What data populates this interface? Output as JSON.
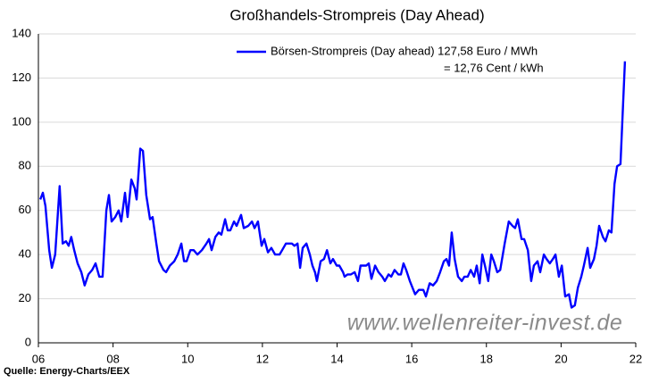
{
  "chart_data": {
    "type": "line",
    "title": "Großhandels-Strompreis (Day Ahead)",
    "annotations": [
      "= 12,76 Cent / kWh",
      "www.wellenreiter-invest.de",
      "Quelle: Energy-Charts/EEX"
    ],
    "x": [
      6.05,
      6.12,
      6.19,
      6.29,
      6.36,
      6.45,
      6.57,
      6.65,
      6.74,
      6.81,
      6.88,
      6.96,
      7.05,
      7.15,
      7.24,
      7.34,
      7.44,
      7.53,
      7.63,
      7.72,
      7.82,
      7.89,
      7.96,
      8.06,
      8.15,
      8.22,
      8.32,
      8.39,
      8.49,
      8.58,
      8.63,
      8.73,
      8.8,
      8.89,
      8.99,
      9.06,
      9.16,
      9.23,
      9.35,
      9.42,
      9.52,
      9.64,
      9.73,
      9.83,
      9.9,
      9.97,
      10.07,
      10.16,
      10.26,
      10.38,
      10.5,
      10.57,
      10.64,
      10.74,
      10.83,
      10.9,
      11.0,
      11.07,
      11.14,
      11.24,
      11.31,
      11.43,
      11.5,
      11.62,
      11.72,
      11.79,
      11.88,
      11.98,
      12.05,
      12.15,
      12.24,
      12.34,
      12.46,
      12.53,
      12.63,
      12.79,
      12.86,
      12.94,
      13.01,
      13.08,
      13.18,
      13.27,
      13.34,
      13.41,
      13.46,
      13.56,
      13.65,
      13.73,
      13.82,
      13.89,
      13.99,
      14.06,
      14.16,
      14.2,
      14.28,
      14.37,
      14.47,
      14.56,
      14.63,
      14.78,
      14.85,
      14.92,
      15.02,
      15.11,
      15.21,
      15.28,
      15.38,
      15.45,
      15.54,
      15.64,
      15.71,
      15.78,
      15.85,
      15.95,
      16.09,
      16.19,
      16.31,
      16.38,
      16.48,
      16.57,
      16.67,
      16.76,
      16.86,
      16.93,
      17.0,
      17.07,
      17.15,
      17.24,
      17.34,
      17.41,
      17.5,
      17.58,
      17.67,
      17.74,
      17.82,
      17.89,
      17.96,
      18.05,
      18.13,
      18.2,
      18.29,
      18.37,
      18.49,
      18.6,
      18.7,
      18.77,
      18.84,
      18.94,
      19.01,
      19.11,
      19.2,
      19.27,
      19.37,
      19.44,
      19.54,
      19.61,
      19.7,
      19.78,
      19.85,
      19.94,
      20.02,
      20.11,
      20.21,
      20.28,
      20.37,
      20.45,
      20.54,
      20.61,
      20.71,
      20.78,
      20.88,
      20.95,
      21.02,
      21.12,
      21.19,
      21.28,
      21.35,
      21.43,
      21.5,
      21.59,
      21.71
    ],
    "series": [
      {
        "name": "Börsen-Strompreis (Day ahead) 127,58 Euro / MWh",
        "color": "#0000ff",
        "values": [
          65,
          68,
          62,
          42,
          34,
          40,
          71,
          45,
          46,
          44,
          48,
          42,
          36,
          32,
          26,
          31,
          33,
          36,
          30,
          30,
          60,
          67,
          55,
          57,
          60,
          55,
          68,
          57,
          74,
          70,
          65,
          88,
          87,
          67,
          56,
          57,
          45,
          37,
          33,
          32,
          35,
          37,
          40,
          45,
          37,
          37,
          42,
          42,
          40,
          42,
          45,
          47,
          42,
          48,
          50,
          49,
          56,
          51,
          51,
          55,
          53,
          58,
          52,
          53,
          55,
          52,
          55,
          44,
          47,
          41,
          43,
          40,
          40,
          42,
          45,
          45,
          44,
          45,
          34,
          43,
          45,
          40,
          35,
          32,
          28,
          37,
          38,
          42,
          36,
          38,
          35,
          35,
          32,
          30,
          31,
          31,
          32,
          28,
          35,
          35,
          36,
          29,
          35,
          32,
          30,
          28,
          31,
          30,
          33,
          31,
          31,
          36,
          33,
          28,
          22,
          24,
          24,
          21,
          27,
          26,
          28,
          32,
          37,
          38,
          35,
          50,
          38,
          30,
          28,
          30,
          30,
          33,
          30,
          35,
          27,
          40,
          35,
          28,
          40,
          37,
          32,
          33,
          45,
          55,
          53,
          52,
          56,
          47,
          47,
          42,
          28,
          35,
          37,
          32,
          40,
          38,
          36,
          38,
          40,
          30,
          35,
          21,
          22,
          16,
          17,
          25,
          30,
          35,
          43,
          34,
          38,
          44,
          53,
          48,
          46,
          51,
          50,
          72,
          80,
          81,
          127.58
        ]
      }
    ],
    "xlim": [
      6,
      22
    ],
    "xticks": [
      {
        "value": 6,
        "label": "06"
      },
      {
        "value": 8,
        "label": "08"
      },
      10,
      12,
      14,
      16,
      18,
      20,
      22
    ],
    "ylim": [
      0,
      140
    ],
    "yticks": [
      0,
      20,
      40,
      60,
      80,
      100,
      120,
      140
    ],
    "grid": true
  }
}
